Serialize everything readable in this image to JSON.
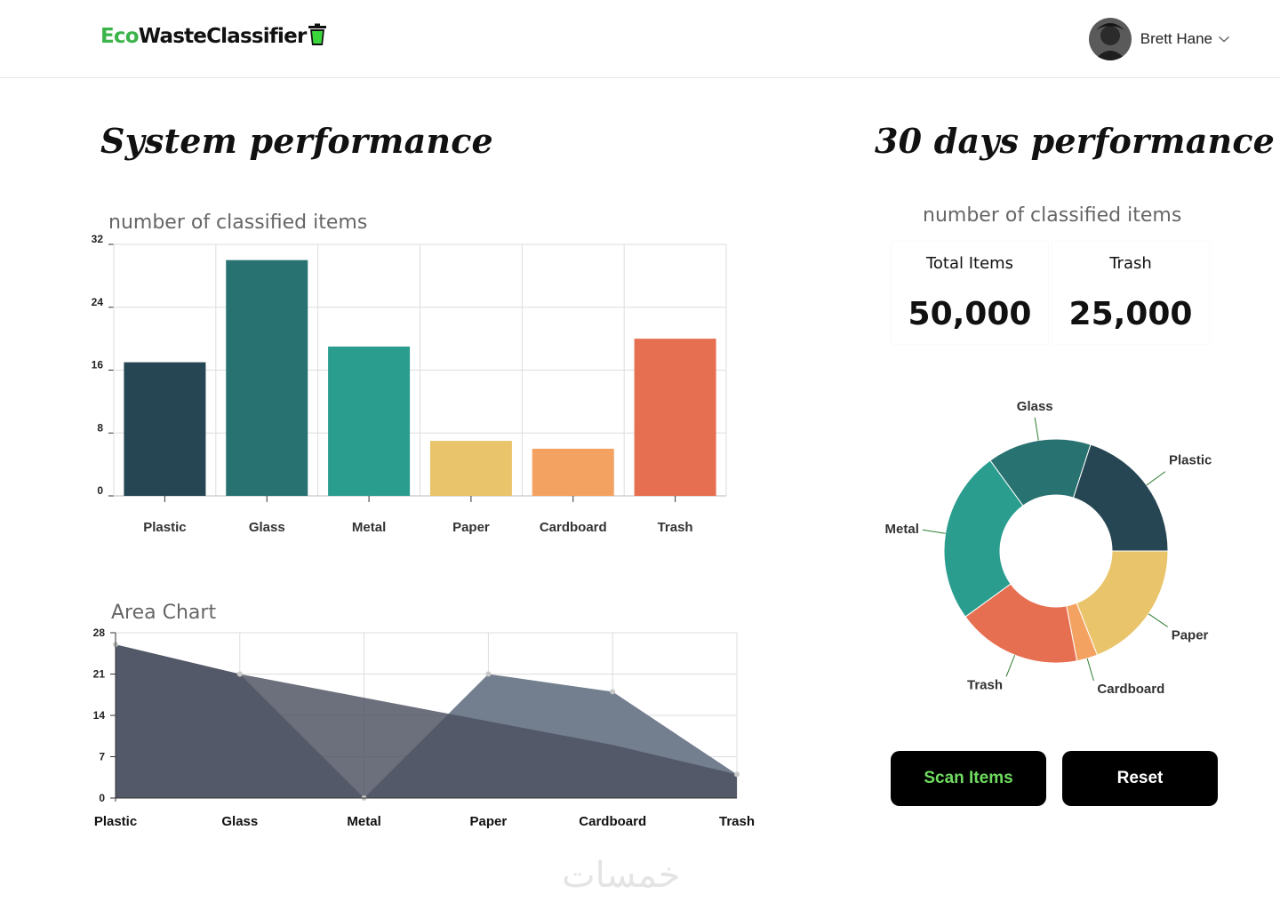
{
  "header": {
    "logo": {
      "part1": "Eco",
      "part2": "WasteClassifier",
      "icon": "trash-bin-icon"
    },
    "user": {
      "name": "Brett Hane",
      "menu_icon": "chevron-down-icon"
    }
  },
  "left": {
    "title": "System performance",
    "bar_caption": "number of classified items",
    "area_caption": "Area Chart"
  },
  "right": {
    "title": "30 days performance",
    "caption": "number of classified items",
    "stats": [
      {
        "label": "Total Items",
        "value": "50,000"
      },
      {
        "label": "Trash",
        "value": "25,000"
      }
    ]
  },
  "buttons": {
    "scan": "Scan Items",
    "reset": "Reset"
  },
  "colors": {
    "plastic": "#264653",
    "glass": "#287271",
    "metal": "#2a9d8f",
    "paper": "#e9c46a",
    "cardboard": "#f4a261",
    "trash": "#e76f51",
    "area_back": "#737f8f",
    "area_front": "#4c515f",
    "scan_text": "#6fdc5f"
  },
  "watermark": "خمسات",
  "chart_data": [
    {
      "type": "bar",
      "title": "number of classified items",
      "categories": [
        "Plastic",
        "Glass",
        "Metal",
        "Paper",
        "Cardboard",
        "Trash"
      ],
      "values": [
        17,
        30,
        19,
        7,
        6,
        20
      ],
      "yticks": [
        0,
        8,
        16,
        24,
        32
      ],
      "ylim": [
        0,
        32
      ],
      "grid": true
    },
    {
      "type": "area",
      "title": "Area Chart",
      "categories": [
        "Plastic",
        "Glass",
        "Metal",
        "Paper",
        "Cardboard",
        "Trash"
      ],
      "series": [
        {
          "values": [
            26,
            21,
            17,
            13,
            9,
            4
          ]
        },
        {
          "values": [
            26,
            21,
            0,
            21,
            18,
            4
          ]
        }
      ],
      "yticks": [
        0,
        7,
        14,
        21,
        28
      ],
      "ylim": [
        0,
        28
      ],
      "grid": true
    },
    {
      "type": "pie",
      "title": "number of classified items",
      "labels": [
        "Plastic",
        "Paper",
        "Cardboard",
        "Trash",
        "Metal",
        "Glass"
      ],
      "values": [
        20,
        19,
        3,
        18,
        25,
        15
      ],
      "donut": true
    }
  ]
}
